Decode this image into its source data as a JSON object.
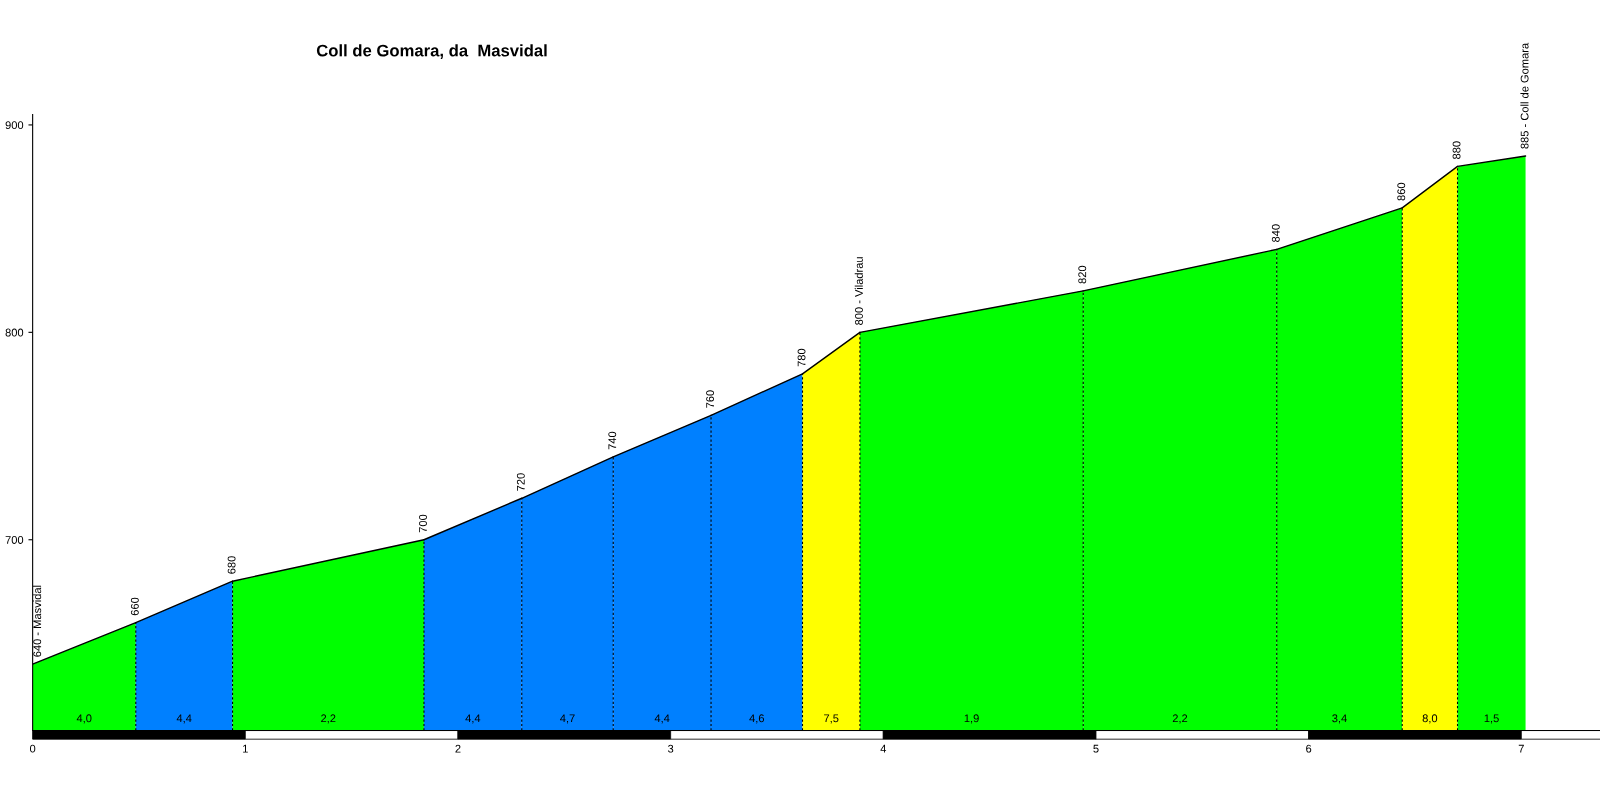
{
  "chart_data": {
    "type": "area",
    "title": "Coll de Gomara, da  Masvidal",
    "series": [
      {
        "x": [
          0,
          0.485
        ],
        "values": [
          640,
          660
        ],
        "color": "#00ff00"
      },
      {
        "x": [
          0.485,
          0.94
        ],
        "values": [
          660,
          680
        ],
        "color": "#0080ff"
      },
      {
        "x": [
          0.94,
          1.84
        ],
        "values": [
          680,
          700
        ],
        "color": "#00ff00"
      },
      {
        "x": [
          1.84,
          2.3
        ],
        "values": [
          700,
          720
        ],
        "color": "#0080ff"
      },
      {
        "x": [
          2.3,
          2.73
        ],
        "values": [
          720,
          740
        ],
        "color": "#0080ff"
      },
      {
        "x": [
          2.73,
          3.19
        ],
        "values": [
          740,
          760
        ],
        "color": "#0080ff"
      },
      {
        "x": [
          3.19,
          3.62
        ],
        "values": [
          760,
          780
        ],
        "color": "#0080ff"
      },
      {
        "x": [
          3.62,
          3.89
        ],
        "values": [
          780,
          800
        ],
        "color": "#ffff00"
      },
      {
        "x": [
          3.89,
          4.94
        ],
        "values": [
          800,
          820
        ],
        "color": "#00ff00"
      },
      {
        "x": [
          4.94,
          5.85
        ],
        "values": [
          820,
          840
        ],
        "color": "#00ff00"
      },
      {
        "x": [
          5.85,
          6.44
        ],
        "values": [
          840,
          860
        ],
        "color": "#00ff00"
      },
      {
        "x": [
          6.44,
          6.7
        ],
        "values": [
          860,
          880
        ],
        "color": "#ffff00"
      },
      {
        "x": [
          6.7,
          7.02
        ],
        "values": [
          880,
          885
        ],
        "color": "#00ff00"
      }
    ],
    "annotations": [
      "4,0",
      "4,4",
      "2,2",
      "4,4",
      "4,7",
      "4,4",
      "4,6",
      "7,5",
      "1,9",
      "2,2",
      "3,4",
      "8,0",
      "1,5",
      {
        "text": "640 - Masvidal",
        "x": 0,
        "y": 640
      },
      {
        "text": "660",
        "x": 0.485,
        "y": 660
      },
      {
        "text": "680",
        "x": 0.94,
        "y": 680
      },
      {
        "text": "700",
        "x": 1.84,
        "y": 700
      },
      {
        "text": "720",
        "x": 2.3,
        "y": 720
      },
      {
        "text": "740",
        "x": 2.73,
        "y": 740
      },
      {
        "text": "760",
        "x": 3.19,
        "y": 760
      },
      {
        "text": "780",
        "x": 3.62,
        "y": 780
      },
      {
        "text": "800 - Viladrau",
        "x": 3.89,
        "y": 800
      },
      {
        "text": "820",
        "x": 4.94,
        "y": 820
      },
      {
        "text": "840",
        "x": 5.85,
        "y": 840
      },
      {
        "text": "860",
        "x": 6.44,
        "y": 860
      },
      {
        "text": "880",
        "x": 6.7,
        "y": 880
      },
      {
        "text": "885 - Coll de Gomara",
        "x": 7.02,
        "y": 885
      }
    ],
    "ref_lines": [
      {
        "axis": "x",
        "value": 0.485,
        "line_style": "dashed",
        "color": "#000000"
      },
      {
        "axis": "x",
        "value": 0.94,
        "line_style": "dashed",
        "color": "#000000"
      },
      {
        "axis": "x",
        "value": 1.84,
        "line_style": "dashed",
        "color": "#000000"
      },
      {
        "axis": "x",
        "value": 2.3,
        "line_style": "dashed",
        "color": "#000000"
      },
      {
        "axis": "x",
        "value": 2.73,
        "line_style": "dashed",
        "color": "#000000"
      },
      {
        "axis": "x",
        "value": 3.19,
        "line_style": "dashed",
        "color": "#000000"
      },
      {
        "axis": "x",
        "value": 3.62,
        "line_style": "dashed",
        "color": "#000000"
      },
      {
        "axis": "x",
        "value": 3.89,
        "line_style": "dashed",
        "color": "#000000"
      },
      {
        "axis": "x",
        "value": 4.94,
        "line_style": "dashed",
        "color": "#000000"
      },
      {
        "axis": "x",
        "value": 5.85,
        "line_style": "dashed",
        "color": "#000000"
      },
      {
        "axis": "x",
        "value": 6.44,
        "line_style": "dashed",
        "color": "#000000"
      },
      {
        "axis": "x",
        "value": 6.7,
        "line_style": "dashed",
        "color": "#000000"
      }
    ],
    "xlim": [
      0,
      7.37
    ],
    "ylim": [
      608,
      905
    ],
    "xticks": [
      0,
      1,
      2,
      3,
      4,
      5,
      6,
      7
    ],
    "yticks": [
      700,
      800,
      900
    ],
    "grid": false,
    "legend": false
  }
}
